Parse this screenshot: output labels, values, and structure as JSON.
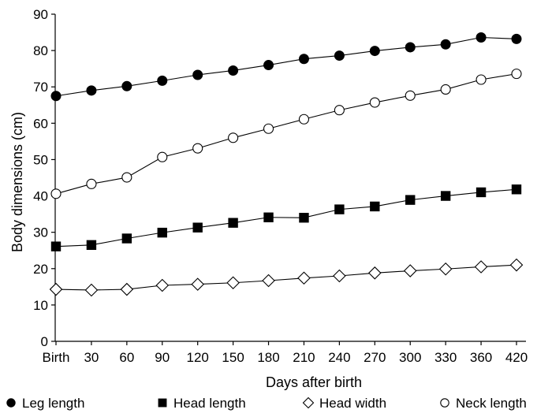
{
  "chart_data": {
    "type": "line",
    "title": "",
    "xlabel": "Days after birth",
    "ylabel": "Body dimensions (cm)",
    "ylim": [
      0,
      90
    ],
    "yticks": [
      0,
      10,
      20,
      30,
      40,
      50,
      60,
      70,
      80,
      90
    ],
    "categories": [
      "Birth",
      "30",
      "60",
      "90",
      "120",
      "150",
      "180",
      "210",
      "240",
      "270",
      "300",
      "330",
      "360",
      "420"
    ],
    "grid": false,
    "legend_position": "bottom",
    "series": [
      {
        "name": "Leg length",
        "marker": "filled-circle",
        "values": [
          67.5,
          69.0,
          70.2,
          71.7,
          73.3,
          74.5,
          76.0,
          77.7,
          78.6,
          79.9,
          80.9,
          81.7,
          83.6,
          83.2
        ]
      },
      {
        "name": "Head length",
        "marker": "filled-square",
        "values": [
          26.1,
          26.5,
          28.3,
          29.9,
          31.3,
          32.6,
          34.1,
          34.0,
          36.3,
          37.1,
          38.9,
          40.0,
          41.0,
          41.8
        ]
      },
      {
        "name": "Head width",
        "marker": "open-diamond",
        "values": [
          14.3,
          14.1,
          14.3,
          15.4,
          15.7,
          16.1,
          16.7,
          17.4,
          18.0,
          18.8,
          19.4,
          19.9,
          20.5,
          21.0
        ]
      },
      {
        "name": "Neck length",
        "marker": "open-circle",
        "values": [
          40.6,
          43.3,
          45.1,
          50.7,
          53.1,
          56.0,
          58.5,
          61.1,
          63.6,
          65.7,
          67.6,
          69.3,
          72.0,
          73.6
        ]
      }
    ]
  }
}
